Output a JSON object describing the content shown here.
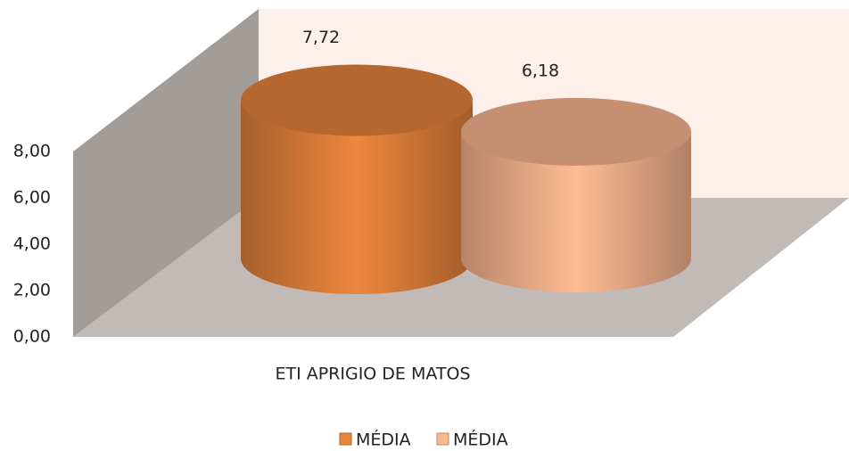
{
  "chart_data": {
    "type": "bar",
    "categories": [
      "ETI APRIGIO DE MATOS"
    ],
    "series": [
      {
        "name": "MÉDIA",
        "color": "#e8843c",
        "values": [
          7.72
        ],
        "value_labels": [
          "7,72"
        ]
      },
      {
        "name": "MÉDIA",
        "color": "#fbb891",
        "values": [
          6.18
        ],
        "value_labels": [
          "6,18"
        ]
      }
    ],
    "ylim": [
      0,
      8
    ],
    "yticks": [
      {
        "value": 0,
        "label": "0,00"
      },
      {
        "value": 2,
        "label": "2,00"
      },
      {
        "value": 4,
        "label": "4,00"
      },
      {
        "value": 6,
        "label": "6,00"
      },
      {
        "value": 8,
        "label": "8,00"
      }
    ],
    "legend": "bottom"
  }
}
